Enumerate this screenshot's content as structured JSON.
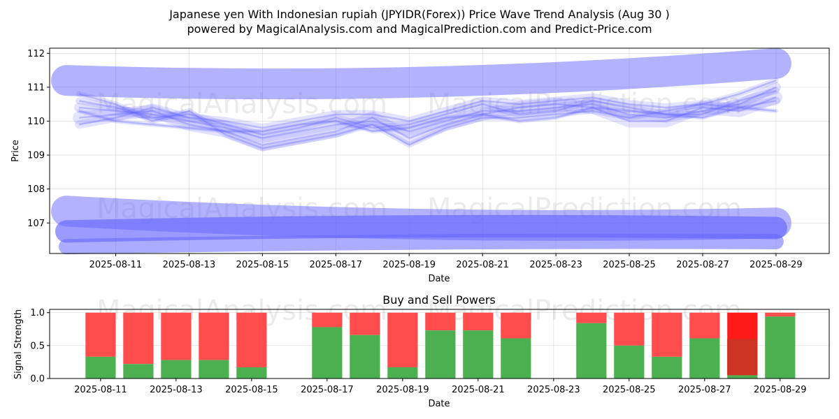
{
  "title_line1": "Japanese yen With Indonesian rupiah (JPYIDR(Forex)) Price Wave Trend Analysis (Aug 30 )",
  "title_line2": "powered by MagicalAnalysis.com and MagicalPrediction.com and Predict-Price.com",
  "watermarks": [
    "MagicalAnalysis.com",
    "MagicalPrediction.com"
  ],
  "colors": {
    "wave": "#6666ff",
    "buy": "#4caf50",
    "sell": "#ff4d4d",
    "sell_strong": "#ff1a1a",
    "buy_dark": "#cc3322"
  },
  "chart_data": [
    {
      "type": "line",
      "title": "",
      "xlabel": "Date",
      "ylabel": "Price",
      "x_ticks": [
        "2025-08-11",
        "2025-08-13",
        "2025-08-15",
        "2025-08-17",
        "2025-08-19",
        "2025-08-21",
        "2025-08-23",
        "2025-08-25",
        "2025-08-27",
        "2025-08-29"
      ],
      "y_ticks": [
        107,
        108,
        109,
        110,
        111,
        112
      ],
      "xlim": [
        "2025-08-09",
        "2025-08-30"
      ],
      "ylim": [
        106.1,
        112.15
      ],
      "grid": true,
      "x": [
        "2025-08-10",
        "2025-08-11",
        "2025-08-12",
        "2025-08-13",
        "2025-08-14",
        "2025-08-15",
        "2025-08-16",
        "2025-08-17",
        "2025-08-18",
        "2025-08-19",
        "2025-08-20",
        "2025-08-21",
        "2025-08-22",
        "2025-08-23",
        "2025-08-24",
        "2025-08-25",
        "2025-08-26",
        "2025-08-27",
        "2025-08-28",
        "2025-08-29"
      ],
      "series": [
        {
          "values": [
            110.4,
            110.3,
            110.2,
            110.0,
            109.8,
            109.5,
            109.7,
            109.9,
            110.0,
            109.7,
            110.0,
            110.3,
            110.3,
            110.4,
            110.5,
            110.2,
            110.1,
            110.3,
            110.5,
            111.0
          ]
        },
        {
          "values": [
            110.6,
            110.4,
            110.1,
            110.2,
            109.9,
            109.6,
            109.8,
            110.1,
            109.8,
            109.9,
            110.2,
            110.5,
            110.2,
            110.3,
            110.6,
            110.4,
            110.2,
            110.2,
            110.6,
            110.9
          ]
        },
        {
          "values": [
            110.1,
            110.2,
            110.3,
            109.9,
            109.7,
            109.3,
            109.5,
            109.7,
            110.1,
            109.5,
            109.9,
            110.2,
            110.4,
            110.5,
            110.4,
            110.0,
            110.0,
            110.4,
            110.3,
            110.7
          ]
        },
        {
          "values": [
            110.8,
            110.5,
            110.0,
            110.3,
            109.6,
            109.2,
            109.4,
            109.6,
            109.9,
            109.3,
            109.8,
            110.1,
            110.1,
            110.2,
            110.3,
            110.1,
            110.3,
            110.5,
            110.8,
            111.2
          ]
        },
        {
          "values": [
            109.9,
            110.1,
            110.4,
            110.1,
            110.0,
            109.8,
            110.0,
            110.2,
            110.2,
            110.0,
            110.3,
            110.6,
            110.5,
            110.6,
            110.7,
            110.5,
            110.4,
            110.5,
            110.4,
            110.6
          ]
        },
        {
          "values": [
            110.3,
            110.0,
            109.9,
            109.8,
            109.7,
            109.7,
            109.9,
            110.0,
            109.7,
            109.8,
            110.1,
            110.2,
            110.0,
            110.1,
            110.4,
            110.3,
            110.2,
            110.1,
            110.4,
            110.3
          ]
        }
      ],
      "band_series": [
        {
          "start": 111.2,
          "end": 111.7,
          "mid": 110.85
        },
        {
          "start": 107.35,
          "end": 107.0,
          "mid": 106.75
        },
        {
          "start": 106.75,
          "end": 106.85,
          "mid": 107.0
        },
        {
          "start": 106.3,
          "end": 106.45,
          "mid": 106.5
        }
      ]
    },
    {
      "type": "bar",
      "title": "Buy and Sell Powers",
      "xlabel": "Date",
      "ylabel": "Signal Strength",
      "x_ticks": [
        "2025-08-11",
        "2025-08-13",
        "2025-08-15",
        "2025-08-17",
        "2025-08-19",
        "2025-08-21",
        "2025-08-23",
        "2025-08-25",
        "2025-08-27",
        "2025-08-29"
      ],
      "y_ticks": [
        "0.0",
        "0.5",
        "1.0"
      ],
      "ylim": [
        0,
        1.05
      ],
      "categories": [
        "2025-08-11",
        "2025-08-12",
        "2025-08-13",
        "2025-08-14",
        "2025-08-15",
        "2025-08-17",
        "2025-08-18",
        "2025-08-19",
        "2025-08-20",
        "2025-08-21",
        "2025-08-22",
        "2025-08-24",
        "2025-08-25",
        "2025-08-26",
        "2025-08-27",
        "2025-08-28",
        "2025-08-29"
      ],
      "buy": [
        0.33,
        0.22,
        0.28,
        0.28,
        0.17,
        0.78,
        0.66,
        0.17,
        0.73,
        0.73,
        0.61,
        0.84,
        0.5,
        0.33,
        0.61,
        0.05,
        0.94
      ],
      "sell": [
        0.67,
        0.78,
        0.72,
        0.72,
        0.83,
        0.22,
        0.34,
        0.83,
        0.27,
        0.27,
        0.39,
        0.16,
        0.5,
        0.67,
        0.39,
        0.95,
        0.06
      ]
    }
  ]
}
